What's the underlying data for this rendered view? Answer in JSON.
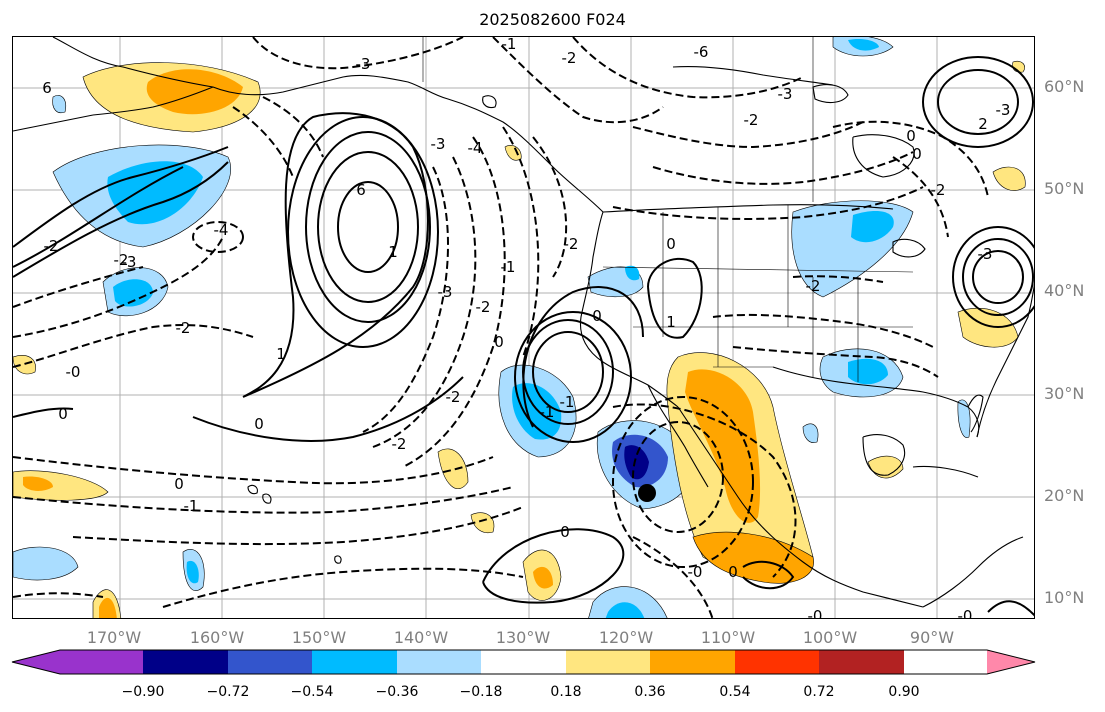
{
  "title": "2025082600 F024",
  "lat_labels": [
    "60°N",
    "50°N",
    "40°N",
    "30°N",
    "20°N",
    "10°N"
  ],
  "lon_labels": [
    "170°W",
    "160°W",
    "150°W",
    "140°W",
    "130°W",
    "120°W",
    "110°W",
    "100°W",
    "90°W"
  ],
  "contour_labels": [
    "6",
    "-3",
    "-1",
    "-2",
    "-6",
    "-3",
    "-2",
    "-3",
    "0",
    "-4",
    "-3",
    "-2",
    "2",
    "6",
    "-4",
    "1",
    "-2",
    "-3",
    "-2",
    "-1",
    "-3",
    "0",
    "0",
    "-2",
    "0",
    "-0",
    "1",
    "1",
    "-2",
    "0",
    "-1",
    "0",
    "-1",
    "0",
    "-2",
    "0",
    "-0",
    "0",
    "-1",
    "-0",
    "-2",
    "-0",
    "-3",
    "-2",
    "0",
    "-2"
  ],
  "colorbar": {
    "ticks": [
      "−0.90",
      "−0.72",
      "−0.54",
      "−0.36",
      "−0.18",
      "0.18",
      "0.36",
      "0.54",
      "0.72",
      "0.90"
    ],
    "colors": [
      "#9933cc",
      "#000088",
      "#3355cc",
      "#00bbff",
      "#aaddff",
      "#ffffff",
      "#ffe680",
      "#ffa500",
      "#ff3300",
      "#b22222",
      "#ff88aa"
    ]
  },
  "marker": {
    "name": "black-dot"
  }
}
